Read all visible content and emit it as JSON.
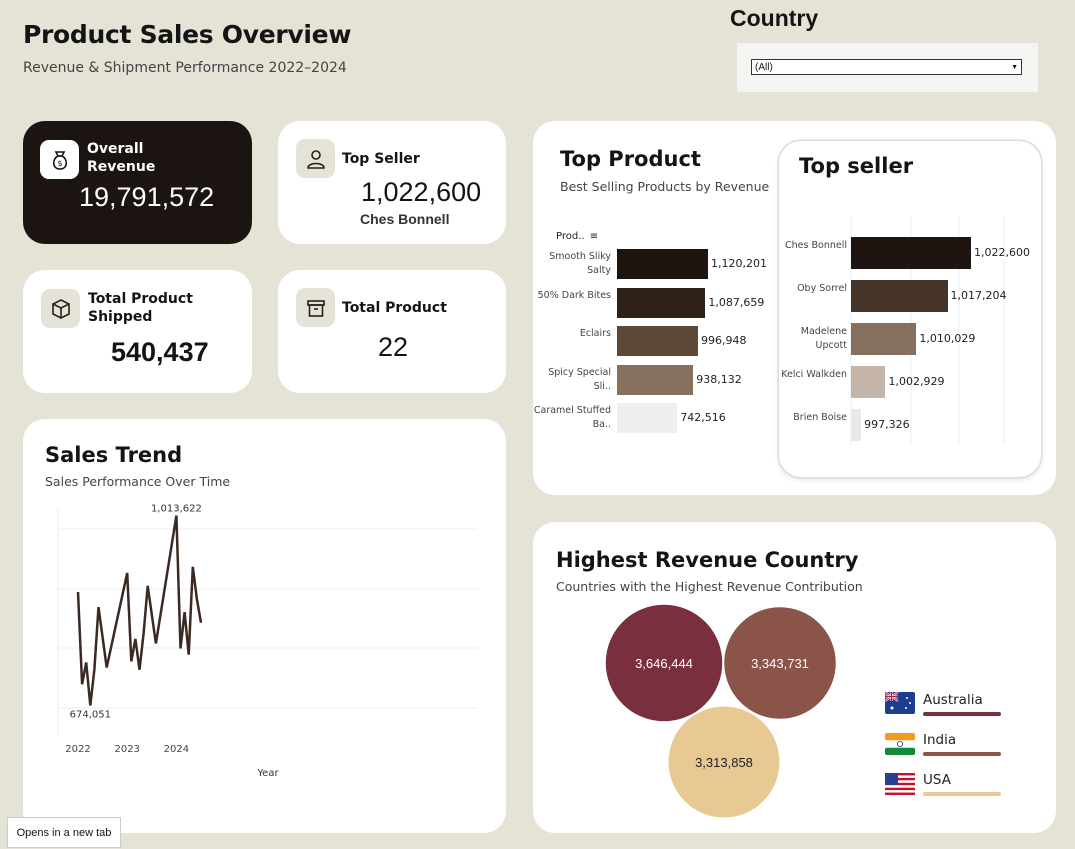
{
  "header": {
    "title": "Product Sales Overview",
    "subtitle": "Revenue & Shipment Performance 2022–2024"
  },
  "filter": {
    "title": "Country",
    "selected": "(All)"
  },
  "kpis": {
    "revenue": {
      "label_line1": "Overall",
      "label_line2": "Revenue",
      "value": "19,791,572"
    },
    "top_seller": {
      "label": "Top Seller",
      "value": "1,022,600",
      "name": "Ches Bonnell"
    },
    "shipped": {
      "label_line1": "Total Product",
      "label_line2": "Shipped",
      "value": "540,437"
    },
    "products": {
      "label": "Total Product",
      "value": "22"
    }
  },
  "top_product": {
    "title": "Top Product",
    "subtitle": "Best Selling Products by Revenue",
    "header": "Prod.."
  },
  "top_seller_chart": {
    "title": "Top seller"
  },
  "sales_trend": {
    "title": "Sales Trend",
    "subtitle": "Sales Performance Over Time",
    "max_label": "1,013,622",
    "min_label": "674,051"
  },
  "country_card": {
    "title": "Highest Revenue Country",
    "subtitle": "Countries with the Highest Revenue Contribution",
    "legend": [
      {
        "name": "Australia",
        "color": "#7a2f3f"
      },
      {
        "name": "India",
        "color": "#8a5548"
      },
      {
        "name": "USA",
        "color": "#e8c994"
      }
    ]
  },
  "tooltip": "Opens in a new tab",
  "chart_data": [
    {
      "type": "bar",
      "categories": [
        "Smooth Sliky Salty",
        "50% Dark Bites",
        "Eclairs",
        "Spicy Special Sli..",
        "Caramel Stuffed Ba.."
      ],
      "values": [
        1120201,
        1087659,
        996948,
        938132,
        742516
      ],
      "value_labels": [
        "1,120,201",
        "1,087,659",
        "996,948",
        "938,132",
        "742,516"
      ],
      "colors": [
        "#1e1410",
        "#2f2118",
        "#5c4836",
        "#86705e",
        "#efefef"
      ],
      "title": "Top Product",
      "subtitle": "Best Selling Products by Revenue"
    },
    {
      "type": "bar",
      "categories": [
        "Ches Bonnell",
        "Oby Sorrel",
        "Madelene Upcott",
        "Kelci Walkden",
        "Brien Boise"
      ],
      "values": [
        1022600,
        1017204,
        1010029,
        1002929,
        997326
      ],
      "value_labels": [
        "1,022,600",
        "1,017,204",
        "1,010,029",
        "1,002,929",
        "997,326"
      ],
      "colors": [
        "#1e1410",
        "#453428",
        "#85705f",
        "#c4b5a8",
        "#e9e9e9"
      ],
      "title": "Top seller"
    },
    {
      "type": "line",
      "title": "Sales Trend",
      "subtitle": "Sales Performance Over Time",
      "xlabel": "Year",
      "x_ticks": [
        "2022",
        "2023",
        "2024"
      ],
      "x": [
        "2022-01",
        "2022-02",
        "2022-03",
        "2022-04",
        "2022-05",
        "2022-06",
        "2022-08",
        "2023-01",
        "2023-02",
        "2023-03",
        "2023-04",
        "2023-05",
        "2023-06",
        "2023-08",
        "2024-01",
        "2024-02",
        "2024-03",
        "2024-04",
        "2024-05",
        "2024-06",
        "2024-07"
      ],
      "values": [
        877000,
        712000,
        751000,
        674051,
        739000,
        850000,
        742000,
        911000,
        753000,
        793000,
        738000,
        803000,
        888000,
        785000,
        1013622,
        776000,
        841000,
        765000,
        922000,
        864000,
        822000
      ],
      "ylim": [
        650000,
        1020000
      ],
      "grid": true
    },
    {
      "type": "bubble",
      "categories": [
        "Australia",
        "India",
        "USA"
      ],
      "values": [
        3646444,
        3343731,
        3313858
      ],
      "value_labels": [
        "3,646,444",
        "3,343,731",
        "3,313,858"
      ],
      "colors": [
        "#7a2f3f",
        "#8a5548",
        "#e8c994"
      ]
    }
  ]
}
